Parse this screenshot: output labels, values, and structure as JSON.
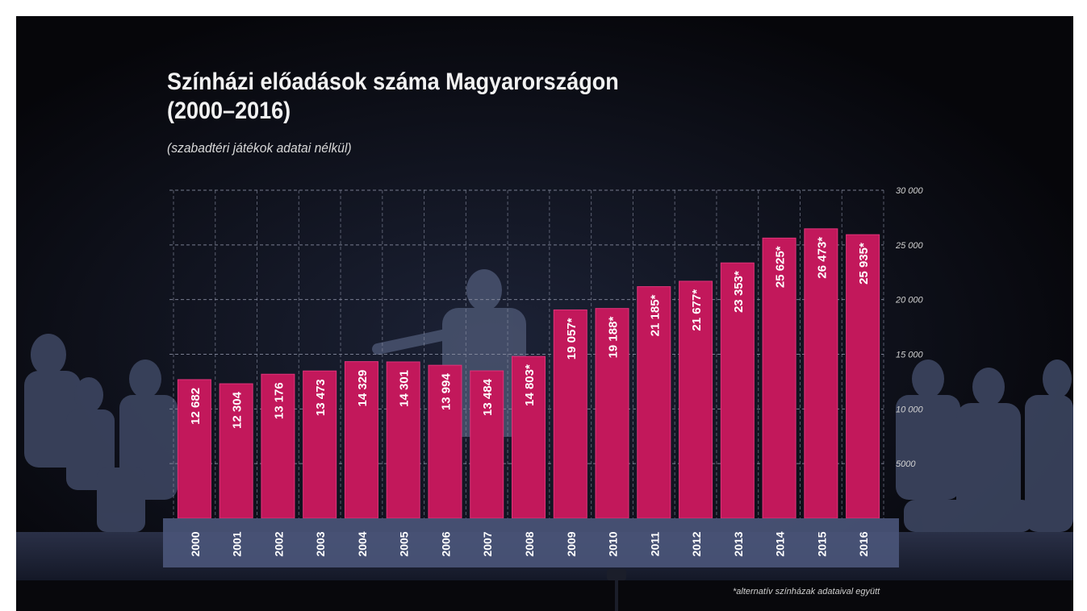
{
  "header": {
    "title_line1": "Színházi előadások száma Magyarországon",
    "title_line2": "(2000–2016)",
    "subtitle": "(szabadtéri játékok adatai nélkül)"
  },
  "footnote": "*alternatív színházak adataival együtt",
  "colors": {
    "bar": "#c2185b",
    "bar_edge": "#e0337a",
    "axis_band": "#4a5578",
    "grid": "#8a8fa3",
    "background": "#06060a"
  },
  "chart_data": {
    "type": "bar",
    "title": "Színházi előadások száma Magyarországon (2000–2016)",
    "subtitle": "(szabadtéri játékok adatai nélkül)",
    "categories": [
      "2000",
      "2001",
      "2002",
      "2003",
      "2004",
      "2005",
      "2006",
      "2007",
      "2008",
      "2009",
      "2010",
      "2011",
      "2012",
      "2013",
      "2014",
      "2015",
      "2016"
    ],
    "values": [
      12682,
      12304,
      13176,
      13473,
      14329,
      14301,
      13994,
      13484,
      14803,
      19057,
      19188,
      21185,
      21677,
      23353,
      25625,
      26473,
      25935
    ],
    "value_labels": [
      "12 682",
      "12 304",
      "13 176",
      "13 473",
      "14 329",
      "14 301",
      "13 994",
      "13 484",
      "14 803*",
      "19 057*",
      "19 188*",
      "21 185*",
      "21 677*",
      "23 353*",
      "25 625*",
      "26 473*",
      "25 935*"
    ],
    "ylim": [
      0,
      30000
    ],
    "yticks": [
      5000,
      10000,
      15000,
      20000,
      25000,
      30000
    ],
    "ytick_labels": [
      "5000",
      "10 000",
      "15 000",
      "20 000",
      "25 000",
      "30 000"
    ],
    "xlabel": "",
    "ylabel": "",
    "grid": true,
    "legend": "none"
  }
}
